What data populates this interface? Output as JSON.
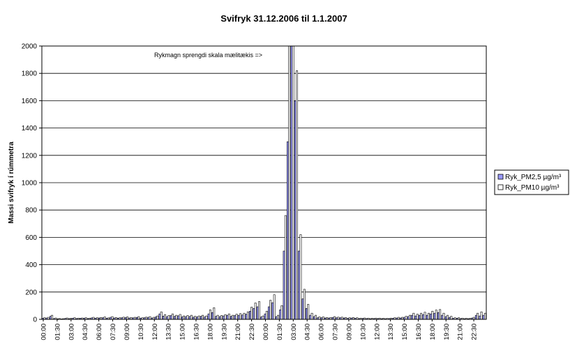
{
  "chart_data": {
    "type": "bar",
    "title": "Svifryk 31.12.2006 til 1.1.2007",
    "ylabel": "Massi svifryk í rúmmetra",
    "xlabel": "",
    "ylim": [
      0,
      2000
    ],
    "yticks": [
      "0",
      "200",
      "400",
      "600",
      "800",
      "1000",
      "1200",
      "1400",
      "1600",
      "1800",
      "2000"
    ],
    "grid": true,
    "legend_position": "right",
    "annotation": "Rykmagn sprengdi skala mælitækis     =>",
    "x_tick_labels": [
      "00:00",
      "01:30",
      "03:00",
      "04:30",
      "06:00",
      "07:30",
      "09:00",
      "10:30",
      "12:00",
      "13:30",
      "15:00",
      "16:30",
      "18:00",
      "19:30",
      "21:00",
      "22:30",
      "00:00",
      "01:30",
      "03:00",
      "04:30",
      "06:00",
      "07:30",
      "09:00",
      "10:30",
      "12:00",
      "13:30",
      "15:00",
      "16:30",
      "18:00",
      "19:30",
      "21:00",
      "22:30"
    ],
    "series": [
      {
        "name": "Ryk_PM2,5 µg/m³",
        "color": "#9999ff",
        "values": [
          8,
          10,
          22,
          6,
          4,
          3,
          7,
          5,
          9,
          6,
          8,
          9,
          6,
          11,
          9,
          10,
          12,
          8,
          15,
          10,
          9,
          12,
          13,
          10,
          11,
          14,
          9,
          12,
          15,
          10,
          18,
          40,
          24,
          20,
          28,
          22,
          26,
          18,
          20,
          21,
          16,
          18,
          22,
          18,
          40,
          50,
          22,
          20,
          25,
          30,
          22,
          28,
          30,
          32,
          38,
          60,
          80,
          92,
          18,
          40,
          92,
          122,
          20,
          70,
          500,
          1300,
          2000,
          1600,
          500,
          150,
          80,
          30,
          20,
          12,
          12,
          10,
          10,
          14,
          12,
          12,
          10,
          8,
          10,
          8,
          6,
          7,
          6,
          5,
          6,
          6,
          5,
          5,
          6,
          8,
          10,
          10,
          15,
          20,
          30,
          25,
          30,
          35,
          30,
          40,
          45,
          50,
          30,
          20,
          15,
          8,
          8,
          6,
          5,
          5,
          10,
          30,
          25,
          30
        ]
      },
      {
        "name": "Ryk_PM10 µg/m³",
        "color": "#ffffff",
        "values": [
          12,
          15,
          30,
          10,
          6,
          5,
          10,
          8,
          12,
          9,
          10,
          12,
          9,
          15,
          12,
          14,
          18,
          11,
          20,
          14,
          12,
          16,
          18,
          14,
          15,
          20,
          12,
          16,
          20,
          15,
          25,
          55,
          35,
          28,
          40,
          30,
          36,
          25,
          28,
          30,
          22,
          25,
          30,
          25,
          70,
          85,
          30,
          28,
          35,
          40,
          30,
          38,
          42,
          45,
          55,
          90,
          120,
          130,
          25,
          60,
          140,
          180,
          30,
          100,
          760,
          2000,
          2000,
          1820,
          620,
          220,
          110,
          45,
          30,
          18,
          18,
          14,
          14,
          20,
          16,
          16,
          14,
          12,
          14,
          12,
          9,
          10,
          9,
          8,
          9,
          9,
          8,
          7,
          9,
          12,
          15,
          15,
          22,
          30,
          45,
          38,
          45,
          52,
          45,
          60,
          68,
          72,
          45,
          30,
          22,
          12,
          12,
          9,
          8,
          8,
          15,
          45,
          55,
          45
        ]
      }
    ]
  }
}
